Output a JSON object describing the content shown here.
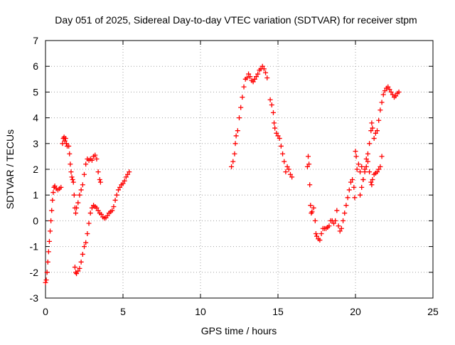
{
  "chart_data": {
    "type": "scatter",
    "title": "Day 051 of 2025, Sidereal Day-to-day VTEC variation (SDTVAR) for receiver stpm",
    "xlabel": "GPS time / hours",
    "ylabel": "SDTVAR / TECUs",
    "xlim": [
      0,
      25
    ],
    "ylim": [
      -3,
      7
    ],
    "xticks": [
      "0",
      "5",
      "10",
      "15",
      "20",
      "25"
    ],
    "yticks": [
      "-3",
      "-2",
      "-1",
      "0",
      "1",
      "2",
      "3",
      "4",
      "5",
      "6",
      "7"
    ],
    "grid": true,
    "marker": "+",
    "color": "#ff0000",
    "series": [
      {
        "points": [
          [
            0.0,
            -2.4
          ],
          [
            0.05,
            -2.3
          ],
          [
            0.1,
            -2.0
          ],
          [
            0.15,
            -1.6
          ],
          [
            0.2,
            -1.2
          ],
          [
            0.25,
            -0.8
          ],
          [
            0.3,
            -0.4
          ],
          [
            0.35,
            0.0
          ],
          [
            0.4,
            0.4
          ],
          [
            0.45,
            0.8
          ],
          [
            0.5,
            1.1
          ],
          [
            0.55,
            1.3
          ],
          [
            0.6,
            1.35
          ],
          [
            0.7,
            1.25
          ],
          [
            0.8,
            1.2
          ],
          [
            0.9,
            1.25
          ],
          [
            1.0,
            1.3
          ],
          [
            1.1,
            3.0
          ],
          [
            1.15,
            3.2
          ],
          [
            1.2,
            3.25
          ],
          [
            1.25,
            3.1
          ],
          [
            1.3,
            3.2
          ],
          [
            1.35,
            3.0
          ],
          [
            1.4,
            2.9
          ],
          [
            1.5,
            2.9
          ],
          [
            1.55,
            2.6
          ],
          [
            1.6,
            2.2
          ],
          [
            1.65,
            1.9
          ],
          [
            1.7,
            1.7
          ],
          [
            1.75,
            1.6
          ],
          [
            1.8,
            1.5
          ],
          [
            1.85,
            1.0
          ],
          [
            1.9,
            0.5
          ],
          [
            1.95,
            0.3
          ],
          [
            2.0,
            0.5
          ],
          [
            2.1,
            0.7
          ],
          [
            2.2,
            1.0
          ],
          [
            2.3,
            1.2
          ],
          [
            2.4,
            1.4
          ],
          [
            2.5,
            1.8
          ],
          [
            2.6,
            2.2
          ],
          [
            2.7,
            2.4
          ],
          [
            2.8,
            2.35
          ],
          [
            2.9,
            2.4
          ],
          [
            3.0,
            2.35
          ],
          [
            3.1,
            2.5
          ],
          [
            3.2,
            2.55
          ],
          [
            3.3,
            2.4
          ],
          [
            3.4,
            1.9
          ],
          [
            3.5,
            1.6
          ],
          [
            3.55,
            1.5
          ],
          [
            1.9,
            -1.8
          ],
          [
            1.95,
            -2.0
          ],
          [
            2.0,
            -2.05
          ],
          [
            2.1,
            -1.95
          ],
          [
            2.2,
            -1.85
          ],
          [
            2.3,
            -1.6
          ],
          [
            2.4,
            -1.3
          ],
          [
            2.5,
            -1.0
          ],
          [
            2.6,
            -0.85
          ],
          [
            2.7,
            -0.5
          ],
          [
            2.8,
            -0.1
          ],
          [
            2.9,
            0.3
          ],
          [
            3.0,
            0.5
          ],
          [
            3.1,
            0.6
          ],
          [
            3.2,
            0.55
          ],
          [
            3.3,
            0.5
          ],
          [
            3.4,
            0.4
          ],
          [
            3.5,
            0.3
          ],
          [
            3.6,
            0.25
          ],
          [
            3.7,
            0.15
          ],
          [
            3.8,
            0.1
          ],
          [
            3.9,
            0.12
          ],
          [
            4.0,
            0.2
          ],
          [
            4.1,
            0.3
          ],
          [
            4.2,
            0.35
          ],
          [
            4.3,
            0.4
          ],
          [
            4.4,
            0.55
          ],
          [
            4.5,
            0.8
          ],
          [
            4.6,
            1.0
          ],
          [
            4.7,
            1.2
          ],
          [
            4.8,
            1.3
          ],
          [
            4.9,
            1.4
          ],
          [
            5.0,
            1.45
          ],
          [
            5.1,
            1.55
          ],
          [
            5.2,
            1.7
          ],
          [
            5.3,
            1.8
          ],
          [
            5.4,
            1.9
          ],
          [
            12.0,
            2.1
          ],
          [
            12.1,
            2.3
          ],
          [
            12.2,
            2.6
          ],
          [
            12.25,
            3.0
          ],
          [
            12.3,
            3.3
          ],
          [
            12.4,
            3.5
          ],
          [
            12.5,
            4.0
          ],
          [
            12.6,
            4.4
          ],
          [
            12.7,
            4.8
          ],
          [
            12.8,
            5.2
          ],
          [
            12.9,
            5.5
          ],
          [
            13.0,
            5.55
          ],
          [
            13.1,
            5.7
          ],
          [
            13.2,
            5.6
          ],
          [
            13.3,
            5.45
          ],
          [
            13.4,
            5.4
          ],
          [
            13.5,
            5.5
          ],
          [
            13.6,
            5.6
          ],
          [
            13.7,
            5.7
          ],
          [
            13.8,
            5.85
          ],
          [
            13.9,
            5.9
          ],
          [
            14.0,
            6.0
          ],
          [
            14.1,
            5.9
          ],
          [
            14.2,
            5.75
          ],
          [
            14.3,
            5.55
          ],
          [
            14.5,
            4.7
          ],
          [
            14.6,
            4.5
          ],
          [
            14.7,
            4.2
          ],
          [
            14.75,
            3.8
          ],
          [
            14.8,
            3.6
          ],
          [
            14.9,
            3.4
          ],
          [
            15.0,
            3.3
          ],
          [
            15.1,
            3.2
          ],
          [
            15.2,
            2.9
          ],
          [
            15.3,
            2.6
          ],
          [
            15.4,
            2.3
          ],
          [
            15.5,
            1.9
          ],
          [
            15.6,
            2.1
          ],
          [
            15.7,
            2.0
          ],
          [
            15.8,
            1.8
          ],
          [
            15.9,
            1.7
          ],
          [
            16.9,
            2.1
          ],
          [
            16.95,
            2.5
          ],
          [
            17.0,
            2.2
          ],
          [
            17.05,
            1.4
          ],
          [
            17.1,
            0.6
          ],
          [
            17.15,
            0.3
          ],
          [
            17.2,
            0.35
          ],
          [
            17.3,
            0.5
          ],
          [
            17.4,
            0.0
          ],
          [
            17.45,
            -0.5
          ],
          [
            17.5,
            -0.6
          ],
          [
            17.6,
            -0.7
          ],
          [
            17.7,
            -0.75
          ],
          [
            17.8,
            -0.5
          ],
          [
            17.9,
            -0.3
          ],
          [
            18.0,
            -0.3
          ],
          [
            18.1,
            -0.3
          ],
          [
            18.2,
            -0.25
          ],
          [
            18.3,
            -0.2
          ],
          [
            18.4,
            0.0
          ],
          [
            18.5,
            0.0
          ],
          [
            18.6,
            -0.1
          ],
          [
            18.7,
            0.0
          ],
          [
            18.8,
            0.4
          ],
          [
            18.9,
            -0.2
          ],
          [
            19.0,
            -0.4
          ],
          [
            19.1,
            -0.3
          ],
          [
            19.2,
            0.0
          ],
          [
            19.3,
            0.3
          ],
          [
            19.4,
            0.6
          ],
          [
            19.5,
            0.9
          ],
          [
            19.6,
            1.2
          ],
          [
            19.7,
            1.5
          ],
          [
            19.8,
            1.6
          ],
          [
            19.9,
            1.3
          ],
          [
            19.95,
            0.9
          ],
          [
            20.0,
            2.7
          ],
          [
            20.05,
            2.5
          ],
          [
            20.1,
            2.0
          ],
          [
            20.2,
            2.2
          ],
          [
            20.3,
            1.9
          ],
          [
            20.4,
            2.1
          ],
          [
            20.5,
            1.6
          ],
          [
            20.6,
            2.0
          ],
          [
            20.7,
            2.4
          ],
          [
            20.8,
            2.3
          ],
          [
            20.9,
            1.9
          ],
          [
            21.0,
            1.5
          ],
          [
            21.05,
            1.4
          ],
          [
            21.1,
            1.6
          ],
          [
            21.2,
            1.8
          ],
          [
            21.3,
            1.85
          ],
          [
            21.4,
            1.9
          ],
          [
            21.5,
            2.0
          ],
          [
            21.6,
            2.1
          ],
          [
            21.7,
            2.5
          ],
          [
            20.3,
            1.0
          ],
          [
            20.4,
            1.3
          ],
          [
            20.5,
            1.6
          ],
          [
            20.6,
            1.9
          ],
          [
            20.7,
            2.1
          ],
          [
            20.8,
            2.6
          ],
          [
            20.9,
            3.0
          ],
          [
            21.0,
            3.5
          ],
          [
            21.05,
            3.8
          ],
          [
            21.1,
            3.6
          ],
          [
            21.2,
            3.2
          ],
          [
            21.3,
            3.4
          ],
          [
            21.4,
            3.5
          ],
          [
            21.5,
            3.9
          ],
          [
            21.6,
            4.3
          ],
          [
            21.7,
            4.6
          ],
          [
            21.8,
            4.9
          ],
          [
            21.9,
            5.05
          ],
          [
            22.0,
            5.15
          ],
          [
            22.1,
            5.2
          ],
          [
            22.2,
            5.1
          ],
          [
            22.3,
            5.0
          ],
          [
            22.4,
            4.9
          ],
          [
            22.5,
            4.8
          ],
          [
            22.6,
            4.85
          ],
          [
            22.7,
            4.95
          ],
          [
            22.8,
            5.0
          ]
        ]
      }
    ]
  }
}
